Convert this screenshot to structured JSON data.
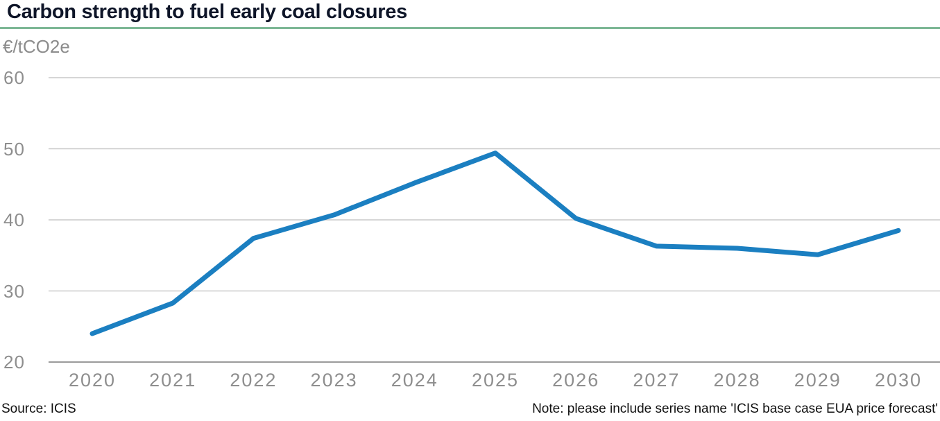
{
  "header": {
    "title": "Carbon strength to fuel early coal closures"
  },
  "chart_data": {
    "type": "line",
    "title": "Carbon strength to fuel early coal closures",
    "unit_label": "€/tCO2e",
    "categories": [
      "2020",
      "2021",
      "2022",
      "2023",
      "2024",
      "2025",
      "2026",
      "2027",
      "2028",
      "2029",
      "2030"
    ],
    "series": [
      {
        "name": "ICIS base case EUA price forecast",
        "values": [
          24.0,
          28.3,
          37.4,
          40.7,
          45.2,
          49.4,
          40.2,
          36.3,
          36.0,
          35.1,
          38.5
        ],
        "color": "#1b7fc1"
      }
    ],
    "ylim": [
      20,
      60
    ],
    "yticks": [
      60,
      50,
      40,
      30,
      20
    ],
    "xlabel": "",
    "ylabel": "€/tCO2e",
    "grid": "horizontal",
    "legend": "none",
    "colors": {
      "accent_rule": "#7cb795",
      "gridline": "#c9c9c9",
      "axis_line": "#9b9b9b",
      "tick_text": "#8e8e8e",
      "title_text": "#0e1528"
    }
  },
  "footer": {
    "source": "Source: ICIS",
    "note": "Note: please include series name 'ICIS base case EUA price forecast'"
  }
}
